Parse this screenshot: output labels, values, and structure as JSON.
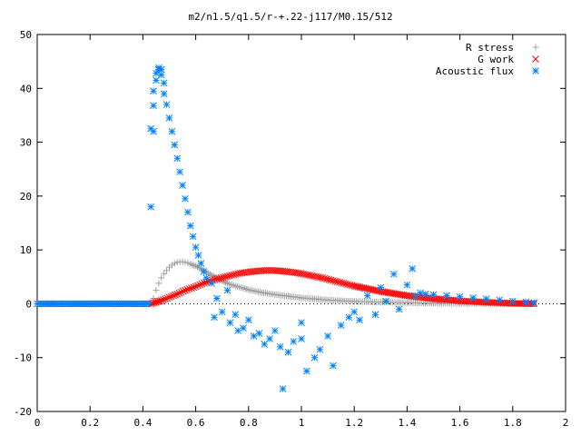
{
  "chart_data": {
    "type": "scatter",
    "title": "m2/n1.5/q1.5/r-+.22-j117/M0.15/512",
    "xlabel": "",
    "ylabel": "",
    "xlim": [
      0,
      2
    ],
    "ylim": [
      -20,
      50
    ],
    "xticks": [
      "0",
      "0.2",
      "0.4",
      "0.6",
      "0.8",
      "1",
      "1.2",
      "1.4",
      "1.6",
      "1.8",
      "2"
    ],
    "yticks": [
      "-20",
      "-10",
      "0",
      "10",
      "20",
      "30",
      "40",
      "50"
    ],
    "grid": false,
    "legend_position": "top-right",
    "series": [
      {
        "name": "R stress",
        "marker": "plus",
        "color": "#a0a0a0",
        "points": [
          [
            0.0,
            0.0
          ],
          [
            0.1,
            0.0
          ],
          [
            0.2,
            0.0
          ],
          [
            0.3,
            0.0
          ],
          [
            0.4,
            0.0
          ],
          [
            0.43,
            0.0
          ],
          [
            0.44,
            1.0
          ],
          [
            0.45,
            2.5
          ],
          [
            0.46,
            3.8
          ],
          [
            0.47,
            4.8
          ],
          [
            0.48,
            5.6
          ],
          [
            0.49,
            6.2
          ],
          [
            0.5,
            6.8
          ],
          [
            0.51,
            7.2
          ],
          [
            0.52,
            7.5
          ],
          [
            0.53,
            7.7
          ],
          [
            0.54,
            7.8
          ],
          [
            0.55,
            7.8
          ],
          [
            0.56,
            7.7
          ],
          [
            0.57,
            7.6
          ],
          [
            0.58,
            7.4
          ],
          [
            0.6,
            7.0
          ],
          [
            0.62,
            6.5
          ],
          [
            0.64,
            5.9
          ],
          [
            0.66,
            5.3
          ],
          [
            0.68,
            4.8
          ],
          [
            0.7,
            4.3
          ],
          [
            0.72,
            3.8
          ],
          [
            0.75,
            3.3
          ],
          [
            0.78,
            2.9
          ],
          [
            0.8,
            2.6
          ],
          [
            0.85,
            2.1
          ],
          [
            0.9,
            1.7
          ],
          [
            0.95,
            1.4
          ],
          [
            1.0,
            1.1
          ],
          [
            1.05,
            0.9
          ],
          [
            1.1,
            0.7
          ],
          [
            1.15,
            0.55
          ],
          [
            1.2,
            0.45
          ],
          [
            1.3,
            0.3
          ],
          [
            1.4,
            0.2
          ],
          [
            1.5,
            0.1
          ],
          [
            1.6,
            0.06
          ],
          [
            1.7,
            0.03
          ],
          [
            1.8,
            0.01
          ],
          [
            1.88,
            0.0
          ]
        ]
      },
      {
        "name": "G work",
        "marker": "cross",
        "color": "#ff0000",
        "points": [
          [
            0.43,
            0.0
          ],
          [
            0.45,
            0.3
          ],
          [
            0.47,
            0.6
          ],
          [
            0.5,
            1.2
          ],
          [
            0.53,
            1.8
          ],
          [
            0.56,
            2.5
          ],
          [
            0.6,
            3.2
          ],
          [
            0.64,
            4.0
          ],
          [
            0.68,
            4.6
          ],
          [
            0.72,
            5.1
          ],
          [
            0.76,
            5.6
          ],
          [
            0.8,
            5.9
          ],
          [
            0.84,
            6.1
          ],
          [
            0.88,
            6.2
          ],
          [
            0.92,
            6.1
          ],
          [
            0.96,
            5.9
          ],
          [
            1.0,
            5.6
          ],
          [
            1.04,
            5.2
          ],
          [
            1.08,
            4.8
          ],
          [
            1.12,
            4.3
          ],
          [
            1.16,
            3.8
          ],
          [
            1.2,
            3.3
          ],
          [
            1.25,
            2.8
          ],
          [
            1.3,
            2.3
          ],
          [
            1.35,
            1.9
          ],
          [
            1.4,
            1.5
          ],
          [
            1.45,
            1.2
          ],
          [
            1.5,
            0.95
          ],
          [
            1.55,
            0.75
          ],
          [
            1.6,
            0.55
          ],
          [
            1.65,
            0.4
          ],
          [
            1.7,
            0.28
          ],
          [
            1.75,
            0.18
          ],
          [
            1.8,
            0.1
          ],
          [
            1.85,
            0.04
          ],
          [
            1.88,
            0.0
          ]
        ]
      },
      {
        "name": "Acoustic flux",
        "marker": "star",
        "color": "#0080ff",
        "points": [
          [
            0.0,
            0.0
          ],
          [
            0.05,
            0.0
          ],
          [
            0.1,
            0.0
          ],
          [
            0.15,
            0.0
          ],
          [
            0.2,
            0.0
          ],
          [
            0.25,
            0.0
          ],
          [
            0.3,
            0.0
          ],
          [
            0.35,
            0.0
          ],
          [
            0.4,
            0.0
          ],
          [
            0.42,
            0.0
          ],
          [
            0.43,
            18.0
          ],
          [
            0.43,
            32.5
          ],
          [
            0.44,
            32.0
          ],
          [
            0.44,
            36.8
          ],
          [
            0.44,
            39.5
          ],
          [
            0.45,
            41.5
          ],
          [
            0.45,
            42.8
          ],
          [
            0.46,
            43.5
          ],
          [
            0.46,
            43.8
          ],
          [
            0.47,
            43.5
          ],
          [
            0.47,
            42.5
          ],
          [
            0.48,
            41.0
          ],
          [
            0.48,
            39.0
          ],
          [
            0.49,
            37.0
          ],
          [
            0.5,
            34.5
          ],
          [
            0.51,
            32.0
          ],
          [
            0.52,
            29.5
          ],
          [
            0.53,
            27.0
          ],
          [
            0.54,
            24.5
          ],
          [
            0.55,
            22.0
          ],
          [
            0.56,
            19.5
          ],
          [
            0.57,
            17.0
          ],
          [
            0.58,
            14.5
          ],
          [
            0.59,
            12.5
          ],
          [
            0.6,
            10.5
          ],
          [
            0.61,
            9.0
          ],
          [
            0.62,
            7.5
          ],
          [
            0.63,
            6.0
          ],
          [
            0.64,
            4.8
          ],
          [
            0.66,
            3.8
          ],
          [
            0.67,
            -2.5
          ],
          [
            0.68,
            1.0
          ],
          [
            0.7,
            -1.5
          ],
          [
            0.72,
            2.5
          ],
          [
            0.73,
            -3.5
          ],
          [
            0.75,
            -2.0
          ],
          [
            0.76,
            -5.0
          ],
          [
            0.78,
            -4.5
          ],
          [
            0.8,
            -3.0
          ],
          [
            0.82,
            -6.0
          ],
          [
            0.84,
            -5.5
          ],
          [
            0.86,
            -7.5
          ],
          [
            0.88,
            -6.5
          ],
          [
            0.9,
            -5.0
          ],
          [
            0.92,
            -8.0
          ],
          [
            0.93,
            -15.8
          ],
          [
            0.95,
            -9.0
          ],
          [
            0.97,
            -7.0
          ],
          [
            1.0,
            -6.5
          ],
          [
            1.0,
            -3.5
          ],
          [
            1.02,
            -12.5
          ],
          [
            1.05,
            -10.0
          ],
          [
            1.07,
            -8.5
          ],
          [
            1.1,
            -6.0
          ],
          [
            1.12,
            -11.5
          ],
          [
            1.15,
            -4.0
          ],
          [
            1.18,
            -2.5
          ],
          [
            1.2,
            -1.5
          ],
          [
            1.22,
            -3.0
          ],
          [
            1.25,
            1.5
          ],
          [
            1.28,
            -2.0
          ],
          [
            1.3,
            3.0
          ],
          [
            1.32,
            0.5
          ],
          [
            1.35,
            5.5
          ],
          [
            1.37,
            -1.0
          ],
          [
            1.4,
            3.5
          ],
          [
            1.42,
            6.5
          ],
          [
            1.43,
            1.5
          ],
          [
            1.45,
            2.0
          ],
          [
            1.47,
            1.8
          ],
          [
            1.5,
            1.7
          ],
          [
            1.55,
            1.5
          ],
          [
            1.6,
            1.3
          ],
          [
            1.65,
            1.1
          ],
          [
            1.7,
            0.9
          ],
          [
            1.75,
            0.7
          ],
          [
            1.8,
            0.5
          ],
          [
            1.85,
            0.3
          ],
          [
            1.88,
            0.2
          ]
        ]
      }
    ]
  }
}
